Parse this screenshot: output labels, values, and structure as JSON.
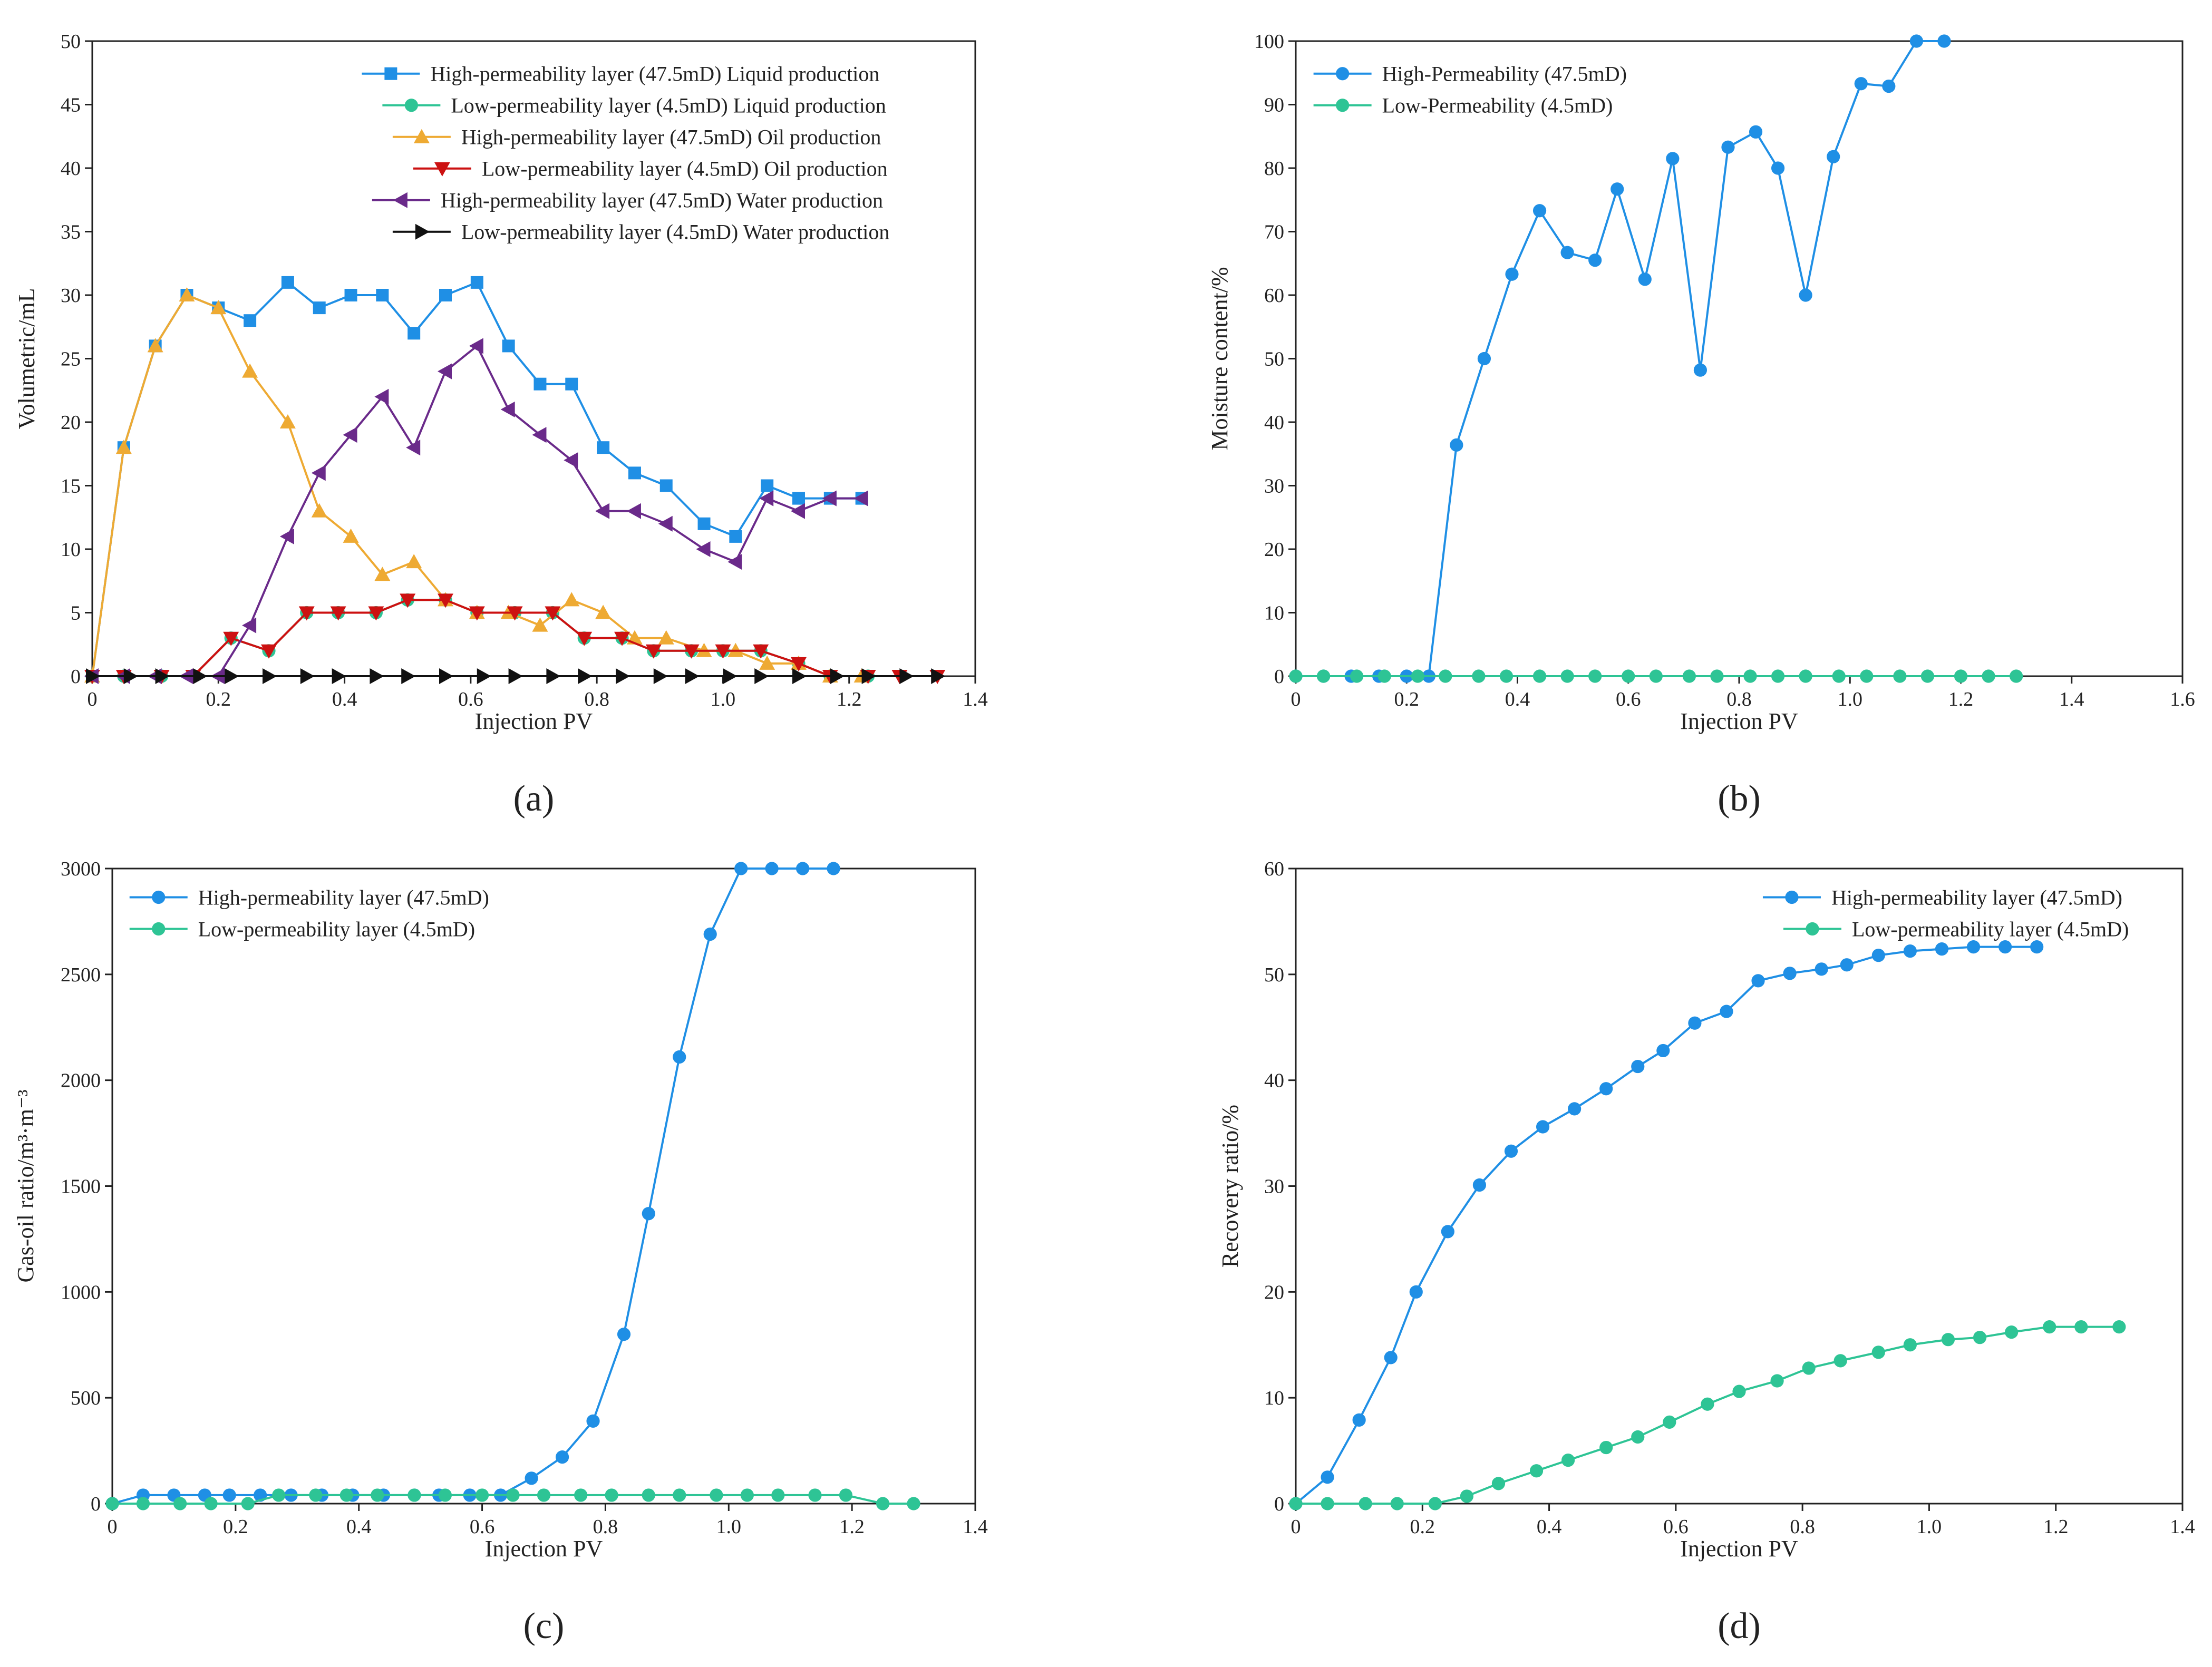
{
  "colors": {
    "blue": "#1f8fe5",
    "teal": "#2ec495",
    "orange": "#eeaa33",
    "red": "#cc1111",
    "purple": "#6a2a8a",
    "black": "#111111",
    "axis": "#222222"
  },
  "chart_data": [
    {
      "panel": "a",
      "panel_label": "(a)",
      "type": "line",
      "xlabel": "Injection PV",
      "ylabel": "Volumetric/mL",
      "xlim": [
        0,
        1.4
      ],
      "ylim": [
        0,
        50
      ],
      "xticks": [
        0,
        0.2,
        0.4,
        0.6,
        0.8,
        1.0,
        1.2,
        1.4
      ],
      "xtick_labels": [
        "0",
        "0.2",
        "0.4",
        "0.6",
        "0.8",
        "1.0",
        "1.2",
        "1.4"
      ],
      "yticks": [
        0,
        5,
        10,
        15,
        20,
        25,
        30,
        35,
        40,
        45,
        50
      ],
      "ytick_labels": [
        "0",
        "5",
        "10",
        "15",
        "20",
        "25",
        "30",
        "35",
        "40",
        "45",
        "50"
      ],
      "grid": false,
      "legend_position": "top-right",
      "series": [
        {
          "name": "High-permeability layer (47.5mD) Liquid production",
          "color": "blue",
          "marker": "square",
          "x": [
            0,
            0.05,
            0.1,
            0.15,
            0.2,
            0.25,
            0.31,
            0.36,
            0.41,
            0.46,
            0.51,
            0.56,
            0.61,
            0.66,
            0.71,
            0.76,
            0.81,
            0.86,
            0.91,
            0.97,
            1.02,
            1.07,
            1.12,
            1.17,
            1.22
          ],
          "y": [
            0,
            18,
            26,
            30,
            29,
            28,
            31,
            29,
            30,
            30,
            27,
            30,
            31,
            26,
            23,
            23,
            18,
            16,
            15,
            12,
            11,
            15,
            14,
            14,
            14
          ]
        },
        {
          "name": "Low-permeability layer (4.5mD) Liquid production",
          "color": "teal",
          "marker": "circle",
          "x": [
            0,
            0.05,
            0.11,
            0.16,
            0.22,
            0.28,
            0.34,
            0.39,
            0.45,
            0.5,
            0.56,
            0.61,
            0.67,
            0.73,
            0.78,
            0.84,
            0.89,
            0.95,
            1.0,
            1.06,
            1.12,
            1.17,
            1.23
          ],
          "y": [
            0,
            0,
            0,
            0,
            3,
            2,
            5,
            5,
            5,
            6,
            6,
            5,
            5,
            5,
            3,
            3,
            2,
            2,
            2,
            2,
            1,
            0,
            0
          ]
        },
        {
          "name": "High-permeability layer (47.5mD) Oil production",
          "color": "orange",
          "marker": "triangle-up",
          "x": [
            0,
            0.05,
            0.1,
            0.15,
            0.2,
            0.25,
            0.31,
            0.36,
            0.41,
            0.46,
            0.51,
            0.56,
            0.61,
            0.66,
            0.71,
            0.76,
            0.81,
            0.86,
            0.91,
            0.97,
            1.02,
            1.07,
            1.12,
            1.17,
            1.22
          ],
          "y": [
            0,
            18,
            26,
            30,
            29,
            24,
            20,
            13,
            11,
            8,
            9,
            6,
            5,
            5,
            4,
            6,
            5,
            3,
            3,
            2,
            2,
            1,
            1,
            0,
            0
          ]
        },
        {
          "name": "Low-permeability layer (4.5mD) Oil production",
          "color": "red",
          "marker": "triangle-down",
          "x": [
            0,
            0.05,
            0.11,
            0.16,
            0.22,
            0.28,
            0.34,
            0.39,
            0.45,
            0.5,
            0.56,
            0.61,
            0.67,
            0.73,
            0.78,
            0.84,
            0.89,
            0.95,
            1.0,
            1.06,
            1.12,
            1.17,
            1.23,
            1.28,
            1.34
          ],
          "y": [
            0,
            0,
            0,
            0,
            3,
            2,
            5,
            5,
            5,
            6,
            6,
            5,
            5,
            5,
            3,
            3,
            2,
            2,
            2,
            2,
            1,
            0,
            0,
            0,
            0
          ]
        },
        {
          "name": "High-permeability layer (47.5mD) Water production",
          "color": "purple",
          "marker": "triangle-left",
          "x": [
            0,
            0.05,
            0.1,
            0.15,
            0.2,
            0.25,
            0.31,
            0.36,
            0.41,
            0.46,
            0.51,
            0.56,
            0.61,
            0.66,
            0.71,
            0.76,
            0.81,
            0.86,
            0.91,
            0.97,
            1.02,
            1.07,
            1.12,
            1.17,
            1.22
          ],
          "y": [
            0,
            0,
            0,
            0,
            0,
            4,
            11,
            16,
            19,
            22,
            18,
            24,
            26,
            21,
            19,
            17,
            13,
            13,
            12,
            10,
            9,
            14,
            13,
            14,
            14
          ]
        },
        {
          "name": "Low-permeability layer (4.5mD) Water production",
          "color": "black",
          "marker": "triangle-right",
          "x": [
            0,
            0.06,
            0.11,
            0.17,
            0.22,
            0.28,
            0.34,
            0.39,
            0.45,
            0.5,
            0.56,
            0.62,
            0.67,
            0.73,
            0.78,
            0.84,
            0.9,
            0.95,
            1.01,
            1.06,
            1.12,
            1.18,
            1.23,
            1.29,
            1.34
          ],
          "y": [
            0,
            0,
            0,
            0,
            0,
            0,
            0,
            0,
            0,
            0,
            0,
            0,
            0,
            0,
            0,
            0,
            0,
            0,
            0,
            0,
            0,
            0,
            0,
            0,
            0
          ]
        }
      ]
    },
    {
      "panel": "b",
      "panel_label": "(b)",
      "type": "line",
      "xlabel": "Injection PV",
      "ylabel": "Moisture content/%",
      "xlim": [
        0,
        1.6
      ],
      "ylim": [
        0,
        100
      ],
      "xticks": [
        0,
        0.2,
        0.4,
        0.6,
        0.8,
        1.0,
        1.2,
        1.4,
        1.6
      ],
      "xtick_labels": [
        "0",
        "0.2",
        "0.4",
        "0.6",
        "0.8",
        "1.0",
        "1.2",
        "1.4",
        "1.6"
      ],
      "yticks": [
        0,
        10,
        20,
        30,
        40,
        50,
        60,
        70,
        80,
        90,
        100
      ],
      "ytick_labels": [
        "0",
        "10",
        "20",
        "30",
        "40",
        "50",
        "60",
        "70",
        "80",
        "90",
        "100"
      ],
      "grid": false,
      "legend_position": "top-left",
      "series": [
        {
          "name": "High-Permeability (47.5mD)",
          "color": "blue",
          "marker": "circle",
          "x": [
            0,
            0.05,
            0.1,
            0.15,
            0.2,
            0.24,
            0.29,
            0.34,
            0.39,
            0.44,
            0.49,
            0.54,
            0.58,
            0.63,
            0.68,
            0.73,
            0.78,
            0.83,
            0.87,
            0.92,
            0.97,
            1.02,
            1.07,
            1.12,
            1.17
          ],
          "y": [
            0,
            0,
            0,
            0,
            0,
            0,
            36.4,
            50,
            63.3,
            73.3,
            66.7,
            65.5,
            76.7,
            62.5,
            81.5,
            48.2,
            83.3,
            85.7,
            80,
            60,
            81.8,
            93.3,
            92.9,
            100,
            100
          ]
        },
        {
          "name": "Low-Permeability (4.5mD)",
          "color": "teal",
          "marker": "circle",
          "x": [
            0,
            0.05,
            0.11,
            0.16,
            0.22,
            0.27,
            0.33,
            0.38,
            0.44,
            0.49,
            0.54,
            0.6,
            0.65,
            0.71,
            0.76,
            0.82,
            0.87,
            0.92,
            0.98,
            1.03,
            1.09,
            1.14,
            1.2,
            1.25,
            1.3
          ],
          "y": [
            0,
            0,
            0,
            0,
            0,
            0,
            0,
            0,
            0,
            0,
            0,
            0,
            0,
            0,
            0,
            0,
            0,
            0,
            0,
            0,
            0,
            0,
            0,
            0,
            0
          ]
        }
      ]
    },
    {
      "panel": "c",
      "panel_label": "(c)",
      "type": "line",
      "xlabel": "Injection PV",
      "ylabel": "Gas-oil ratio/m³·m⁻³",
      "xlim": [
        0,
        1.4
      ],
      "ylim": [
        0,
        3000
      ],
      "xticks": [
        0,
        0.2,
        0.4,
        0.6,
        0.8,
        1.0,
        1.2,
        1.4
      ],
      "xtick_labels": [
        "0",
        "0.2",
        "0.4",
        "0.6",
        "0.8",
        "1.0",
        "1.2",
        "1.4"
      ],
      "yticks": [
        0,
        500,
        1000,
        1500,
        2000,
        2500,
        3000
      ],
      "ytick_labels": [
        "0",
        "500",
        "1000",
        "1500",
        "2000",
        "2500",
        "3000"
      ],
      "grid": false,
      "legend_position": "top-left",
      "series": [
        {
          "name": "High-permeability layer (47.5mD)",
          "color": "blue",
          "marker": "circle",
          "x": [
            0,
            0.05,
            0.1,
            0.15,
            0.19,
            0.24,
            0.29,
            0.34,
            0.39,
            0.44,
            0.49,
            0.53,
            0.58,
            0.63,
            0.68,
            0.73,
            0.78,
            0.83,
            0.87,
            0.92,
            0.97,
            1.02,
            1.07,
            1.12,
            1.17
          ],
          "y": [
            0,
            40,
            40,
            40,
            40,
            40,
            40,
            40,
            40,
            40,
            40,
            40,
            40,
            40,
            120,
            220,
            390,
            800,
            1370,
            2110,
            2690,
            3000,
            3000,
            3000,
            3000
          ]
        },
        {
          "name": "Low-permeability layer (4.5mD)",
          "color": "teal",
          "marker": "circle",
          "x": [
            0,
            0.05,
            0.11,
            0.16,
            0.22,
            0.27,
            0.33,
            0.38,
            0.43,
            0.49,
            0.54,
            0.6,
            0.65,
            0.7,
            0.76,
            0.81,
            0.87,
            0.92,
            0.98,
            1.03,
            1.08,
            1.14,
            1.19,
            1.25,
            1.3
          ],
          "y": [
            0,
            0,
            0,
            0,
            0,
            40,
            40,
            40,
            40,
            40,
            40,
            40,
            40,
            40,
            40,
            40,
            40,
            40,
            40,
            40,
            40,
            40,
            40,
            0,
            0
          ]
        }
      ]
    },
    {
      "panel": "d",
      "panel_label": "(d)",
      "type": "line",
      "xlabel": "Injection PV",
      "ylabel": "Recovery ratio/%",
      "xlim": [
        0,
        1.4
      ],
      "ylim": [
        0,
        60
      ],
      "xticks": [
        0,
        0.2,
        0.4,
        0.6,
        0.8,
        1.0,
        1.2,
        1.4
      ],
      "xtick_labels": [
        "0",
        "0.2",
        "0.4",
        "0.6",
        "0.8",
        "1.0",
        "1.2",
        "1.4"
      ],
      "yticks": [
        0,
        10,
        20,
        30,
        40,
        50,
        60
      ],
      "ytick_labels": [
        "0",
        "10",
        "20",
        "30",
        "40",
        "50",
        "60"
      ],
      "grid": false,
      "legend_position": "top-right",
      "series": [
        {
          "name": "High-permeability layer (47.5mD)",
          "color": "blue",
          "marker": "circle",
          "x": [
            0,
            0.05,
            0.1,
            0.15,
            0.19,
            0.24,
            0.29,
            0.34,
            0.39,
            0.44,
            0.49,
            0.54,
            0.58,
            0.63,
            0.68,
            0.73,
            0.78,
            0.83,
            0.87,
            0.92,
            0.97,
            1.02,
            1.07,
            1.12,
            1.17
          ],
          "y": [
            0,
            2.5,
            7.9,
            13.8,
            20,
            25.7,
            30.1,
            33.3,
            35.6,
            37.3,
            39.2,
            41.3,
            42.8,
            45.4,
            46.5,
            49.4,
            50.1,
            50.5,
            50.9,
            51.8,
            52.2,
            52.4,
            52.6,
            52.6,
            52.6
          ]
        },
        {
          "name": "Low-permeability layer (4.5mD)",
          "color": "teal",
          "marker": "circle",
          "x": [
            0,
            0.05,
            0.11,
            0.16,
            0.22,
            0.27,
            0.32,
            0.38,
            0.43,
            0.49,
            0.54,
            0.59,
            0.65,
            0.7,
            0.76,
            0.81,
            0.86,
            0.92,
            0.97,
            1.03,
            1.08,
            1.13,
            1.19,
            1.24,
            1.3
          ],
          "y": [
            0,
            0,
            0,
            0,
            0,
            0.7,
            1.9,
            3.1,
            4.1,
            5.3,
            6.3,
            7.7,
            9.4,
            10.6,
            11.6,
            12.8,
            13.5,
            14.3,
            15,
            15.5,
            15.7,
            16.2,
            16.7,
            16.7,
            16.7
          ]
        }
      ]
    }
  ]
}
